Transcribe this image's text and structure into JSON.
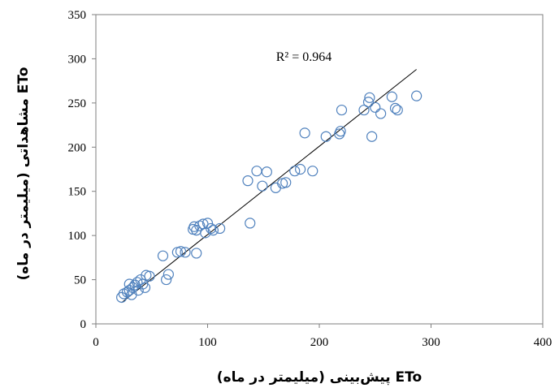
{
  "chart_data": {
    "type": "scatter",
    "title": "",
    "xlabel": "ETo پیش‌بینی (میلیمتر در ماه)",
    "ylabel": "ETo مشاهداتی (میلیمتر در ماه)",
    "xlim": [
      0,
      400
    ],
    "ylim": [
      0,
      350
    ],
    "xticks": [
      "0",
      "100",
      "200",
      "300",
      "400"
    ],
    "yticks": [
      "0",
      "50",
      "100",
      "150",
      "200",
      "250",
      "300",
      "350"
    ],
    "grid": false,
    "legend": "none",
    "annotation": "R² = 0.964",
    "colors": {
      "marker": "#4f81bd",
      "trendline": "#000000",
      "axes": "#7f7f7f"
    },
    "trendline": {
      "x": [
        23,
        287
      ],
      "y": [
        24,
        288
      ]
    },
    "points": [
      {
        "x": 23,
        "y": 30
      },
      {
        "x": 25,
        "y": 34
      },
      {
        "x": 28,
        "y": 36
      },
      {
        "x": 30,
        "y": 38
      },
      {
        "x": 30,
        "y": 45
      },
      {
        "x": 32,
        "y": 33
      },
      {
        "x": 33,
        "y": 41
      },
      {
        "x": 35,
        "y": 44
      },
      {
        "x": 37,
        "y": 47
      },
      {
        "x": 38,
        "y": 38
      },
      {
        "x": 40,
        "y": 50
      },
      {
        "x": 42,
        "y": 45
      },
      {
        "x": 44,
        "y": 41
      },
      {
        "x": 45,
        "y": 55
      },
      {
        "x": 48,
        "y": 54
      },
      {
        "x": 60,
        "y": 77
      },
      {
        "x": 63,
        "y": 50
      },
      {
        "x": 65,
        "y": 56
      },
      {
        "x": 73,
        "y": 81
      },
      {
        "x": 76,
        "y": 82
      },
      {
        "x": 80,
        "y": 81
      },
      {
        "x": 87,
        "y": 107
      },
      {
        "x": 88,
        "y": 110
      },
      {
        "x": 90,
        "y": 80
      },
      {
        "x": 90,
        "y": 106
      },
      {
        "x": 93,
        "y": 111
      },
      {
        "x": 96,
        "y": 113
      },
      {
        "x": 98,
        "y": 103
      },
      {
        "x": 100,
        "y": 114
      },
      {
        "x": 103,
        "y": 108
      },
      {
        "x": 105,
        "y": 106
      },
      {
        "x": 111,
        "y": 108
      },
      {
        "x": 136,
        "y": 162
      },
      {
        "x": 138,
        "y": 114
      },
      {
        "x": 144,
        "y": 173
      },
      {
        "x": 149,
        "y": 156
      },
      {
        "x": 153,
        "y": 172
      },
      {
        "x": 161,
        "y": 154
      },
      {
        "x": 167,
        "y": 159
      },
      {
        "x": 170,
        "y": 160
      },
      {
        "x": 178,
        "y": 173
      },
      {
        "x": 183,
        "y": 175
      },
      {
        "x": 187,
        "y": 216
      },
      {
        "x": 194,
        "y": 173
      },
      {
        "x": 206,
        "y": 212
      },
      {
        "x": 218,
        "y": 215
      },
      {
        "x": 219,
        "y": 218
      },
      {
        "x": 220,
        "y": 242
      },
      {
        "x": 240,
        "y": 242
      },
      {
        "x": 244,
        "y": 251
      },
      {
        "x": 245,
        "y": 256
      },
      {
        "x": 247,
        "y": 212
      },
      {
        "x": 250,
        "y": 245
      },
      {
        "x": 255,
        "y": 238
      },
      {
        "x": 265,
        "y": 257
      },
      {
        "x": 268,
        "y": 244
      },
      {
        "x": 270,
        "y": 242
      },
      {
        "x": 287,
        "y": 258
      }
    ]
  }
}
